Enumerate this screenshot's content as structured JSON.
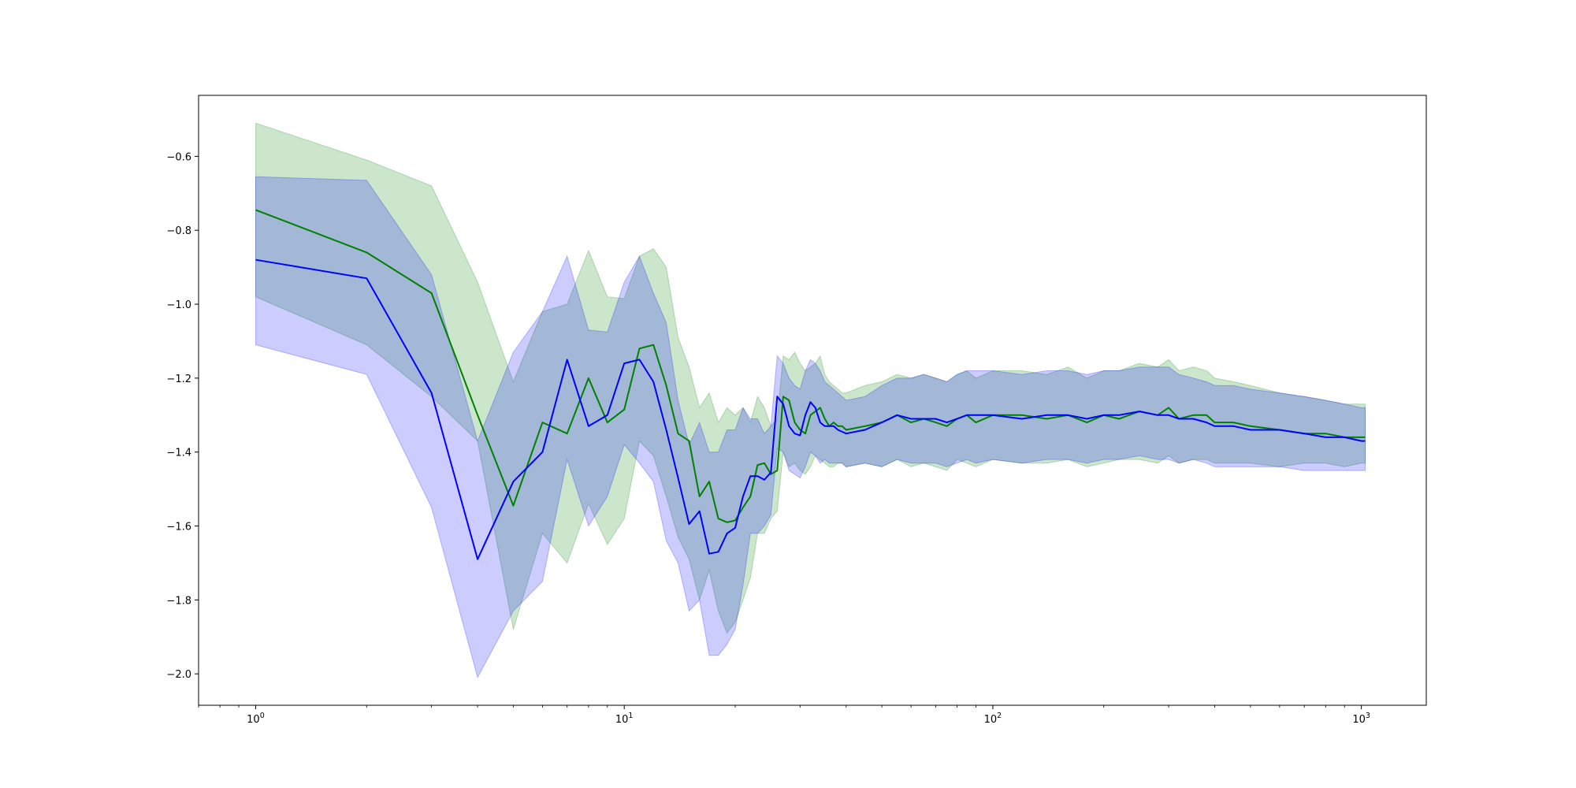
{
  "chart_data": {
    "type": "line",
    "title": "",
    "xlabel": "",
    "ylabel": "",
    "xscale": "log",
    "xlim": [
      0.7,
      1500
    ],
    "ylim": [
      -2.085,
      -0.435
    ],
    "grid": false,
    "legend": "none",
    "x_ticks": [
      {
        "value": 1,
        "base": "10",
        "exp": "0"
      },
      {
        "value": 10,
        "base": "10",
        "exp": "1"
      },
      {
        "value": 100,
        "base": "10",
        "exp": "2"
      },
      {
        "value": 1000,
        "base": "10",
        "exp": "3"
      }
    ],
    "y_ticks": [
      {
        "value": -0.6,
        "label": "−0.6"
      },
      {
        "value": -0.8,
        "label": "−0.8"
      },
      {
        "value": -1.0,
        "label": "−1.0"
      },
      {
        "value": -1.2,
        "label": "−1.2"
      },
      {
        "value": -1.4,
        "label": "−1.4"
      },
      {
        "value": -1.6,
        "label": "−1.6"
      },
      {
        "value": -1.8,
        "label": "−1.8"
      },
      {
        "value": -2.0,
        "label": "−2.0"
      }
    ],
    "series": [
      {
        "color": "#008000",
        "band_color": "#008000",
        "band_opacity": 0.2,
        "x": [
          1,
          2,
          3,
          4,
          5,
          6,
          7,
          8,
          9,
          10,
          11,
          12,
          13,
          14,
          15,
          16,
          17,
          18,
          19,
          20,
          21,
          22,
          23,
          24,
          25,
          26,
          27,
          28,
          29,
          30,
          31,
          32,
          33,
          34,
          35,
          36,
          37,
          38,
          39,
          40,
          45,
          50,
          55,
          60,
          65,
          70,
          75,
          80,
          85,
          90,
          100,
          120,
          140,
          160,
          180,
          200,
          220,
          250,
          280,
          300,
          320,
          350,
          380,
          400,
          450,
          500,
          600,
          700,
          800,
          900,
          1000,
          1024
        ],
        "values": [
          -0.745,
          -0.86,
          -0.97,
          -1.3,
          -1.545,
          -1.32,
          -1.35,
          -1.2,
          -1.32,
          -1.285,
          -1.12,
          -1.11,
          -1.22,
          -1.35,
          -1.37,
          -1.52,
          -1.48,
          -1.58,
          -1.59,
          -1.585,
          -1.55,
          -1.52,
          -1.435,
          -1.43,
          -1.46,
          -1.45,
          -1.25,
          -1.26,
          -1.32,
          -1.34,
          -1.35,
          -1.3,
          -1.29,
          -1.28,
          -1.31,
          -1.33,
          -1.32,
          -1.33,
          -1.33,
          -1.34,
          -1.33,
          -1.32,
          -1.3,
          -1.32,
          -1.31,
          -1.32,
          -1.33,
          -1.31,
          -1.3,
          -1.32,
          -1.3,
          -1.3,
          -1.31,
          -1.3,
          -1.32,
          -1.3,
          -1.31,
          -1.29,
          -1.3,
          -1.28,
          -1.31,
          -1.3,
          -1.3,
          -1.32,
          -1.32,
          -1.33,
          -1.34,
          -1.35,
          -1.35,
          -1.36,
          -1.36,
          -1.36
        ],
        "lower": [
          -0.98,
          -1.11,
          -1.25,
          -1.37,
          -1.88,
          -1.62,
          -1.7,
          -1.54,
          -1.65,
          -1.58,
          -1.37,
          -1.41,
          -1.52,
          -1.63,
          -1.69,
          -1.8,
          -1.72,
          -1.83,
          -1.89,
          -1.86,
          -1.8,
          -1.74,
          -1.62,
          -1.62,
          -1.58,
          -1.56,
          -1.4,
          -1.44,
          -1.43,
          -1.45,
          -1.46,
          -1.44,
          -1.41,
          -1.42,
          -1.43,
          -1.44,
          -1.44,
          -1.43,
          -1.43,
          -1.44,
          -1.43,
          -1.44,
          -1.42,
          -1.44,
          -1.43,
          -1.44,
          -1.45,
          -1.42,
          -1.43,
          -1.44,
          -1.42,
          -1.43,
          -1.43,
          -1.42,
          -1.44,
          -1.43,
          -1.42,
          -1.42,
          -1.43,
          -1.41,
          -1.43,
          -1.42,
          -1.42,
          -1.43,
          -1.43,
          -1.43,
          -1.44,
          -1.43,
          -1.43,
          -1.44,
          -1.43,
          -1.43
        ],
        "upper": [
          -0.51,
          -0.61,
          -0.68,
          -0.94,
          -1.21,
          -1.02,
          -1.0,
          -0.855,
          -0.98,
          -0.985,
          -0.87,
          -0.85,
          -0.9,
          -1.09,
          -1.17,
          -1.28,
          -1.24,
          -1.32,
          -1.28,
          -1.3,
          -1.28,
          -1.32,
          -1.25,
          -1.28,
          -1.33,
          -1.31,
          -1.14,
          -1.15,
          -1.13,
          -1.16,
          -1.18,
          -1.17,
          -1.16,
          -1.14,
          -1.19,
          -1.21,
          -1.22,
          -1.23,
          -1.24,
          -1.24,
          -1.22,
          -1.21,
          -1.19,
          -1.2,
          -1.19,
          -1.2,
          -1.21,
          -1.19,
          -1.18,
          -1.2,
          -1.18,
          -1.18,
          -1.19,
          -1.17,
          -1.2,
          -1.18,
          -1.18,
          -1.16,
          -1.17,
          -1.15,
          -1.18,
          -1.17,
          -1.18,
          -1.2,
          -1.21,
          -1.22,
          -1.24,
          -1.25,
          -1.26,
          -1.27,
          -1.27,
          -1.27
        ]
      },
      {
        "color": "#0000ff",
        "band_color": "#0000ff",
        "band_opacity": 0.2,
        "x": [
          1,
          2,
          3,
          4,
          5,
          6,
          7,
          8,
          9,
          10,
          11,
          12,
          13,
          14,
          15,
          16,
          17,
          18,
          19,
          20,
          21,
          22,
          23,
          24,
          25,
          26,
          27,
          28,
          29,
          30,
          31,
          32,
          33,
          34,
          35,
          36,
          37,
          38,
          39,
          40,
          45,
          50,
          55,
          60,
          65,
          70,
          75,
          80,
          85,
          90,
          100,
          120,
          140,
          160,
          180,
          200,
          220,
          250,
          280,
          300,
          320,
          350,
          380,
          400,
          450,
          500,
          600,
          700,
          800,
          900,
          1000,
          1024
        ],
        "values": [
          -0.88,
          -0.93,
          -1.24,
          -1.69,
          -1.48,
          -1.4,
          -1.15,
          -1.33,
          -1.3,
          -1.16,
          -1.15,
          -1.21,
          -1.34,
          -1.47,
          -1.595,
          -1.56,
          -1.675,
          -1.67,
          -1.62,
          -1.605,
          -1.52,
          -1.465,
          -1.465,
          -1.475,
          -1.455,
          -1.25,
          -1.27,
          -1.33,
          -1.35,
          -1.355,
          -1.3,
          -1.265,
          -1.28,
          -1.32,
          -1.33,
          -1.33,
          -1.33,
          -1.34,
          -1.345,
          -1.35,
          -1.34,
          -1.32,
          -1.3,
          -1.31,
          -1.31,
          -1.31,
          -1.32,
          -1.31,
          -1.3,
          -1.3,
          -1.3,
          -1.31,
          -1.3,
          -1.3,
          -1.31,
          -1.3,
          -1.3,
          -1.29,
          -1.3,
          -1.3,
          -1.31,
          -1.31,
          -1.32,
          -1.33,
          -1.33,
          -1.34,
          -1.34,
          -1.35,
          -1.36,
          -1.36,
          -1.37,
          -1.37
        ],
        "lower": [
          -1.11,
          -1.19,
          -1.55,
          -2.01,
          -1.83,
          -1.75,
          -1.42,
          -1.6,
          -1.52,
          -1.38,
          -1.43,
          -1.48,
          -1.64,
          -1.7,
          -1.83,
          -1.8,
          -1.95,
          -1.95,
          -1.92,
          -1.88,
          -1.76,
          -1.62,
          -1.62,
          -1.6,
          -1.57,
          -1.39,
          -1.4,
          -1.45,
          -1.46,
          -1.47,
          -1.44,
          -1.4,
          -1.41,
          -1.43,
          -1.42,
          -1.43,
          -1.43,
          -1.43,
          -1.43,
          -1.44,
          -1.43,
          -1.44,
          -1.42,
          -1.43,
          -1.43,
          -1.43,
          -1.44,
          -1.43,
          -1.42,
          -1.43,
          -1.42,
          -1.43,
          -1.42,
          -1.42,
          -1.43,
          -1.42,
          -1.42,
          -1.41,
          -1.42,
          -1.42,
          -1.43,
          -1.42,
          -1.43,
          -1.44,
          -1.44,
          -1.44,
          -1.44,
          -1.45,
          -1.45,
          -1.45,
          -1.45,
          -1.45
        ],
        "upper": [
          -0.655,
          -0.665,
          -0.92,
          -1.37,
          -1.13,
          -1.02,
          -0.87,
          -1.07,
          -1.075,
          -0.94,
          -0.87,
          -0.97,
          -1.05,
          -1.26,
          -1.38,
          -1.32,
          -1.4,
          -1.4,
          -1.34,
          -1.34,
          -1.28,
          -1.31,
          -1.31,
          -1.35,
          -1.33,
          -1.14,
          -1.16,
          -1.2,
          -1.22,
          -1.23,
          -1.18,
          -1.15,
          -1.16,
          -1.18,
          -1.21,
          -1.22,
          -1.23,
          -1.24,
          -1.25,
          -1.26,
          -1.25,
          -1.22,
          -1.2,
          -1.2,
          -1.19,
          -1.2,
          -1.21,
          -1.19,
          -1.18,
          -1.18,
          -1.18,
          -1.19,
          -1.18,
          -1.18,
          -1.19,
          -1.18,
          -1.18,
          -1.17,
          -1.17,
          -1.17,
          -1.19,
          -1.2,
          -1.21,
          -1.22,
          -1.22,
          -1.23,
          -1.24,
          -1.25,
          -1.26,
          -1.27,
          -1.28,
          -1.28
        ]
      }
    ]
  }
}
